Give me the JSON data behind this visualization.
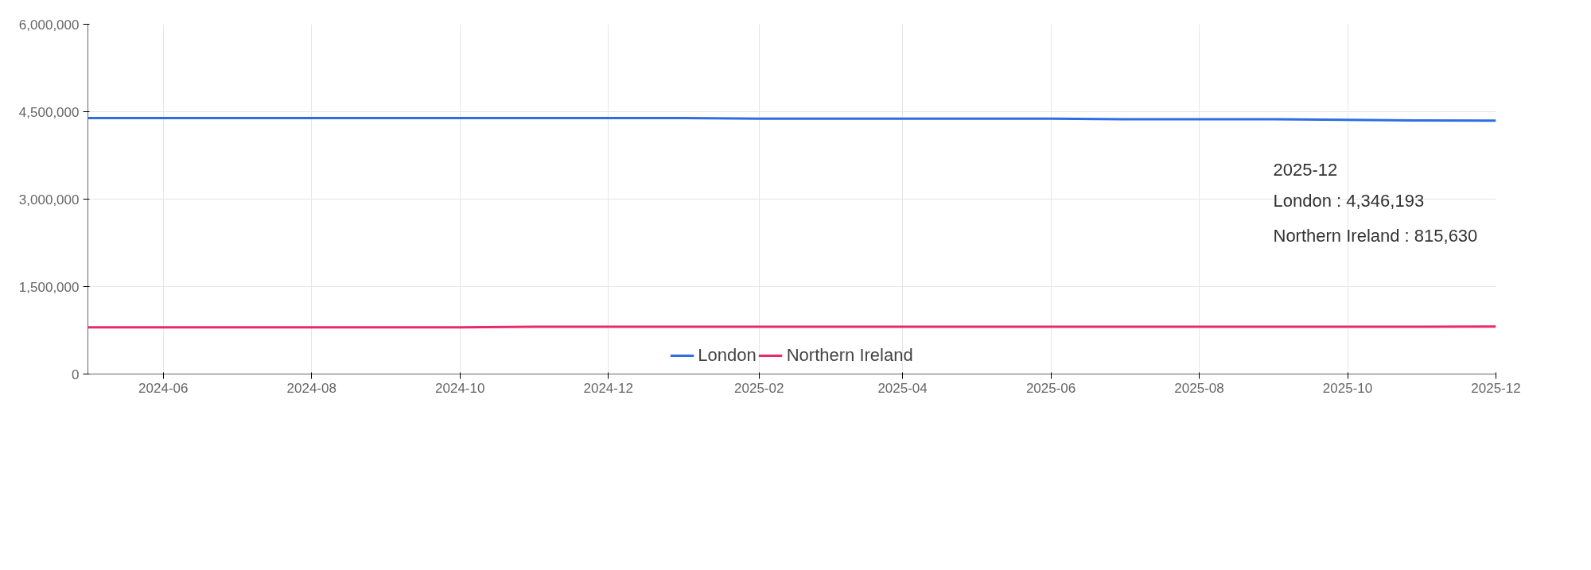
{
  "chart_data": {
    "type": "line",
    "x": [
      "2024-05",
      "2024-06",
      "2024-07",
      "2024-08",
      "2024-09",
      "2024-10",
      "2024-11",
      "2024-12",
      "2025-01",
      "2025-02",
      "2025-03",
      "2025-04",
      "2025-05",
      "2025-06",
      "2025-07",
      "2025-08",
      "2025-09",
      "2025-10",
      "2025-11",
      "2025-12"
    ],
    "series": [
      {
        "name": "London",
        "color": "#2f6de4",
        "values": [
          4390000,
          4390000,
          4390000,
          4390000,
          4390000,
          4390000,
          4390000,
          4390000,
          4390000,
          4380000,
          4380000,
          4380000,
          4380000,
          4380000,
          4370000,
          4370000,
          4370000,
          4360000,
          4350000,
          4346193
        ]
      },
      {
        "name": "Northern Ireland",
        "color": "#e82a68",
        "values": [
          800000,
          800000,
          800000,
          800000,
          800000,
          800000,
          810000,
          810000,
          810000,
          810000,
          810000,
          810000,
          810000,
          810000,
          810000,
          810000,
          810000,
          810000,
          810000,
          815630
        ]
      }
    ],
    "xlim": [
      "2024-05",
      "2025-12"
    ],
    "xticks": [
      "2024-06",
      "2024-08",
      "2024-10",
      "2024-12",
      "2025-02",
      "2025-04",
      "2025-06",
      "2025-08",
      "2025-10",
      "2025-12"
    ],
    "ylim": [
      0,
      6000000
    ],
    "yticks": [
      {
        "value": 0,
        "label": "0"
      },
      {
        "value": 1500000,
        "label": "1,500,000"
      },
      {
        "value": 3000000,
        "label": "3,000,000"
      },
      {
        "value": 4500000,
        "label": "4,500,000"
      },
      {
        "value": 6000000,
        "label": "6,000,000"
      }
    ],
    "annotations": [
      "2025-12",
      "London : 4,346,193",
      "Northern Ireland : 815,630"
    ],
    "grid": true,
    "legend": "bottom",
    "marker": "none",
    "line_style": "solid"
  }
}
